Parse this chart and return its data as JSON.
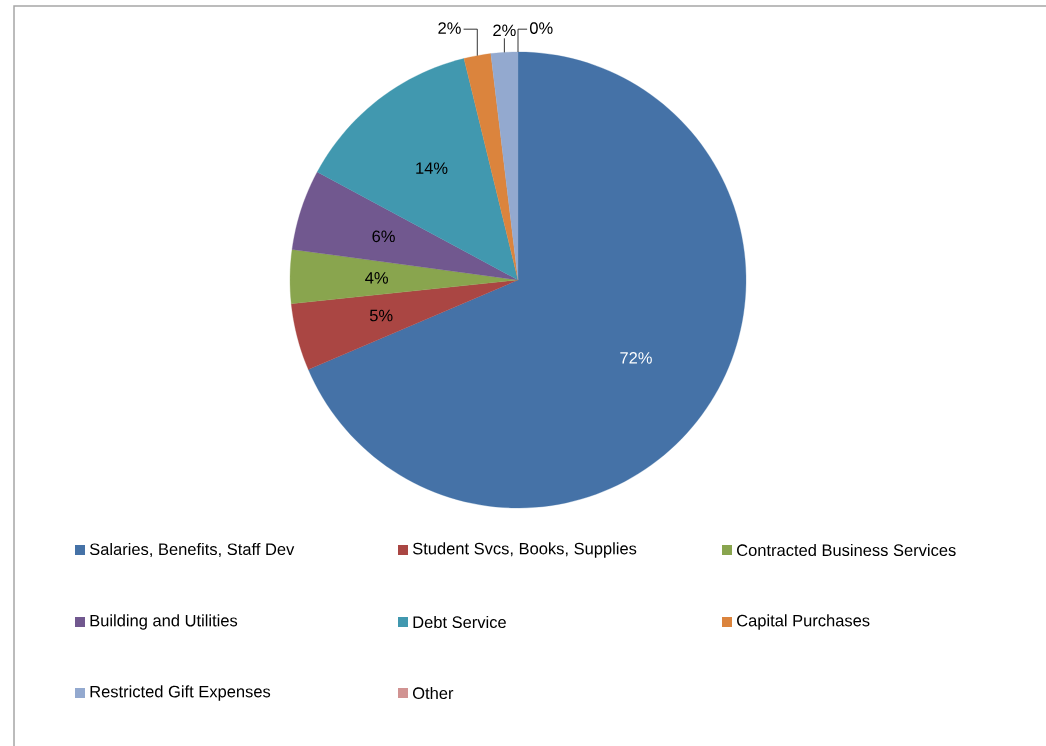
{
  "chart_data": {
    "type": "pie",
    "categories": [
      "Salaries, Benefits, Staff Dev",
      "Student Svcs, Books, Supplies",
      "Contracted Business Services",
      "Building and Utilities",
      "Debt Service",
      "Capital Purchases",
      "Restricted Gift Expenses",
      "Other"
    ],
    "values": [
      72,
      5,
      4,
      6,
      14,
      2,
      2,
      0
    ],
    "colors": [
      "#4572a7",
      "#aa4643",
      "#89a54e",
      "#71588f",
      "#4198af",
      "#db843d",
      "#93a9cf",
      "#d19392"
    ],
    "value_labels": [
      "72%",
      "5%",
      "4%",
      "6%",
      "14%",
      "2%",
      "2%",
      "0%"
    ],
    "legend": "bottom"
  }
}
